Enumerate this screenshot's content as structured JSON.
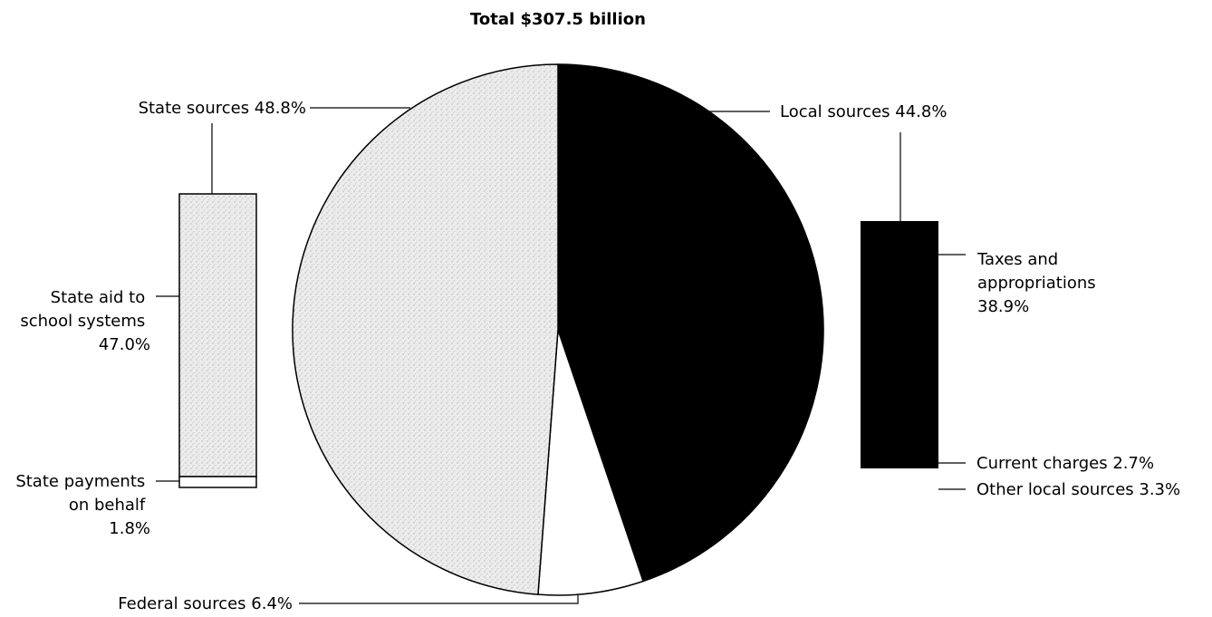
{
  "chart_data": {
    "type": "pie",
    "title": "Total $307.5 billion",
    "slices": [
      {
        "name": "Local sources",
        "value": 44.8,
        "label": "Local sources 44.8%",
        "color": "#000000"
      },
      {
        "name": "Federal sources",
        "value": 6.4,
        "label": "Federal sources 6.4%",
        "color": "#ffffff"
      },
      {
        "name": "State sources",
        "value": 48.8,
        "label": "State sources 48.8%",
        "color": "#e6e6e6"
      }
    ],
    "breakdowns": [
      {
        "parent": "State sources",
        "color": "#e6e6e6",
        "parts": [
          {
            "name": "State aid to school systems",
            "value": 47.0,
            "label_lines": [
              "State aid to",
              "school systems",
              "47.0%"
            ]
          },
          {
            "name": "State payments on behalf",
            "value": 1.8,
            "label_lines": [
              "State payments",
              "on behalf",
              "1.8%"
            ]
          }
        ]
      },
      {
        "parent": "Local sources",
        "color": "#000000",
        "parts": [
          {
            "name": "Taxes and appropriations",
            "value": 38.9,
            "label_lines": [
              "Taxes and",
              "appropriations",
              "38.9%"
            ]
          },
          {
            "name": "Current charges",
            "value": 2.7,
            "label_lines": [
              "Current charges 2.7%"
            ]
          },
          {
            "name": "Other local sources",
            "value": 3.3,
            "label_lines": [
              "Other local sources 3.3%"
            ]
          }
        ]
      }
    ]
  }
}
